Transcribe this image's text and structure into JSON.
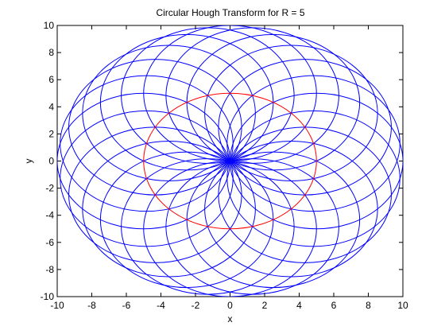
{
  "chart_data": {
    "type": "line",
    "title": "Circular Hough Transform for R = 5",
    "xlabel": "x",
    "ylabel": "y",
    "xlim": [
      -10,
      10
    ],
    "ylim": [
      -10,
      10
    ],
    "xticks": [
      -10,
      -8,
      -6,
      -4,
      -2,
      0,
      2,
      4,
      6,
      8,
      10
    ],
    "yticks": [
      -10,
      -8,
      -6,
      -4,
      -2,
      0,
      2,
      4,
      6,
      8,
      10
    ],
    "grid": false,
    "radius": 5,
    "series": [
      {
        "color": "#ff0000",
        "circles": [
          {
            "cx": 0,
            "cy": 0,
            "r": 5
          }
        ]
      },
      {
        "color": "#0000ff",
        "center_ring_radius": 5,
        "count": 24,
        "r": 5
      }
    ]
  }
}
